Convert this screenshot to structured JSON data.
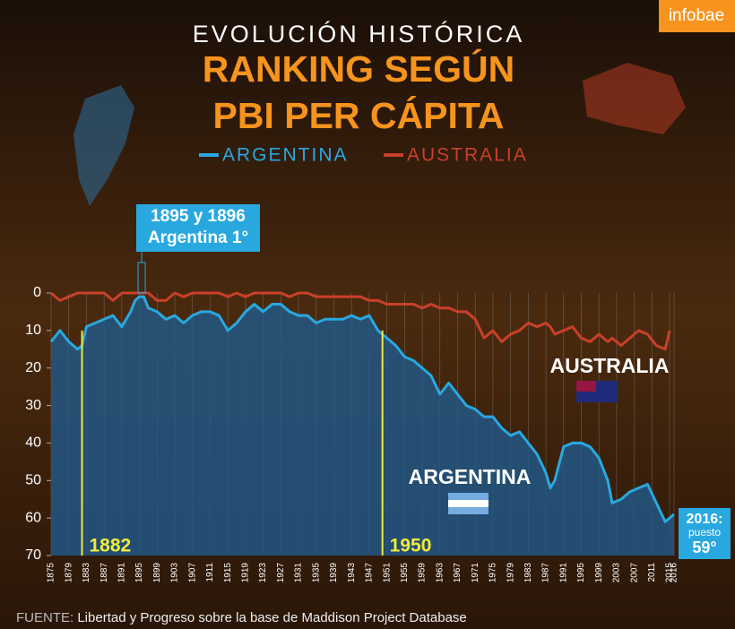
{
  "brand": "infobae",
  "chart_data": {
    "type": "line",
    "title": "EVOLUCIÓN HISTÓRICA",
    "subtitle_lines": [
      "RANKING SEGÚN",
      "PBI PER CÁPITA"
    ],
    "x": [
      1875,
      1877,
      1879,
      1881,
      1882,
      1883,
      1885,
      1887,
      1889,
      1891,
      1893,
      1894,
      1895,
      1896,
      1897,
      1899,
      1901,
      1903,
      1905,
      1907,
      1909,
      1911,
      1913,
      1915,
      1917,
      1919,
      1921,
      1923,
      1925,
      1927,
      1929,
      1931,
      1933,
      1935,
      1937,
      1939,
      1941,
      1943,
      1945,
      1947,
      1948,
      1949,
      1951,
      1953,
      1955,
      1957,
      1959,
      1961,
      1963,
      1965,
      1967,
      1969,
      1971,
      1973,
      1975,
      1977,
      1979,
      1981,
      1983,
      1985,
      1987,
      1988,
      1989,
      1991,
      1993,
      1995,
      1997,
      1999,
      2001,
      2002,
      2004,
      2006,
      2008,
      2010,
      2012,
      2014,
      2015,
      2016
    ],
    "series": [
      {
        "name": "ARGENTINA",
        "color": "#29a8e0",
        "area_color": "#1f5a8c",
        "values": [
          13,
          10,
          13,
          15,
          14,
          9,
          8,
          7,
          6,
          9,
          5,
          2,
          1,
          1,
          4,
          5,
          7,
          6,
          8,
          6,
          5,
          5,
          6,
          10,
          8,
          5,
          3,
          5,
          3,
          3,
          5,
          6,
          6,
          8,
          7,
          7,
          7,
          6,
          7,
          6,
          8,
          10,
          12,
          14,
          17,
          18,
          20,
          22,
          27,
          24,
          27,
          30,
          31,
          33,
          33,
          36,
          38,
          37,
          40,
          43,
          48,
          52,
          50,
          41,
          40,
          40,
          41,
          44,
          50,
          56,
          55,
          53,
          52,
          51,
          56,
          61,
          60,
          59
        ]
      },
      {
        "name": "AUSTRALIA",
        "color": "#c8402a",
        "values": [
          0,
          2,
          1,
          0,
          0,
          0,
          0,
          0,
          2,
          0,
          0,
          0,
          0,
          0,
          0,
          2,
          2,
          0,
          1,
          0,
          0,
          0,
          0,
          1,
          0,
          1,
          0,
          0,
          0,
          0,
          1,
          0,
          0,
          1,
          1,
          1,
          1,
          1,
          1,
          2,
          2,
          2,
          3,
          3,
          3,
          3,
          4,
          3,
          4,
          4,
          5,
          5,
          7,
          12,
          10,
          13,
          11,
          10,
          8,
          9,
          8,
          9,
          11,
          10,
          9,
          12,
          13,
          11,
          13,
          12,
          14,
          12,
          10,
          11,
          14,
          15,
          10,
          null
        ]
      }
    ],
    "xlim": [
      1875,
      2016
    ],
    "xticks": [
      1875,
      1879,
      1883,
      1887,
      1891,
      1895,
      1899,
      1903,
      1907,
      1911,
      1915,
      1919,
      1923,
      1927,
      1931,
      1935,
      1939,
      1943,
      1947,
      1951,
      1955,
      1959,
      1963,
      1967,
      1971,
      1975,
      1979,
      1983,
      1987,
      1991,
      1995,
      1999,
      2003,
      2007,
      2011,
      2015,
      2016
    ],
    "ylim": [
      0,
      70
    ],
    "yticks": [
      0,
      10,
      20,
      30,
      40,
      50,
      60,
      70
    ],
    "y_inverted": true,
    "grid": true,
    "markers": [
      1882,
      1950
    ],
    "callout": [
      "1895 y 1896",
      "Argentina 1°"
    ],
    "labels": [
      "AUSTRALIA",
      "ARGENTINA"
    ],
    "end_note": [
      "2016:",
      "puesto",
      "59°"
    ]
  },
  "source": {
    "label": "FUENTE:",
    "text": "Libertad y Progreso sobre la base de Maddison Project Database"
  }
}
